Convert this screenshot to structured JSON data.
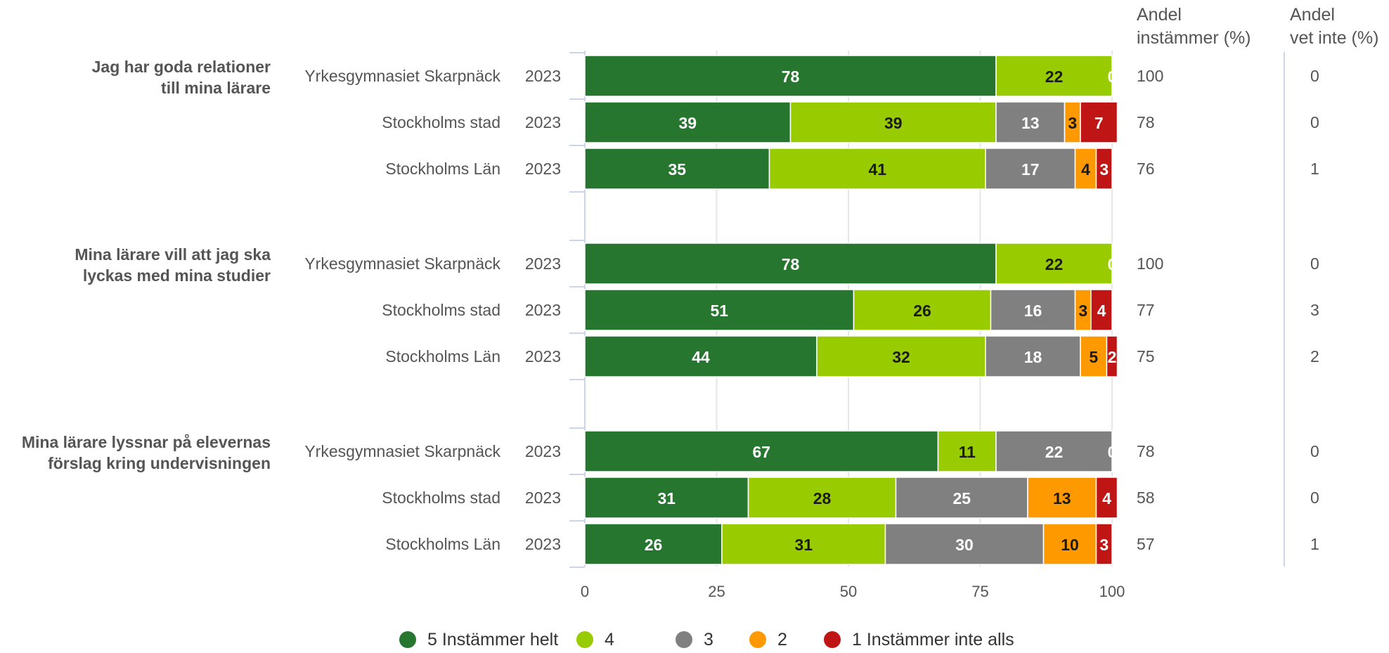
{
  "chart_data": {
    "type": "bar",
    "orientation": "horizontal",
    "stacked": true,
    "xlim": [
      0,
      100
    ],
    "x_ticks": [
      0,
      25,
      50,
      75,
      100
    ],
    "grid": true,
    "legend_position": "bottom",
    "series": [
      {
        "name": "5 Instämmer helt",
        "color": "#267630"
      },
      {
        "name": "4",
        "color": "#99CC00"
      },
      {
        "name": "3",
        "color": "#808080"
      },
      {
        "name": "2",
        "color": "#FF9900"
      },
      {
        "name": "1 Instämmer inte alls",
        "color": "#C01515"
      }
    ],
    "column_headers": {
      "andel_instammer": [
        "Andel",
        "instämmer (%)"
      ],
      "andel_vet_inte": [
        "Andel",
        "vet inte (%)"
      ]
    },
    "groups": [
      {
        "question": [
          "Jag har goda relationer",
          "till mina lärare"
        ],
        "rows": [
          {
            "label": "Yrkesgymnasiet Skarpnäck",
            "year": "2023",
            "values": [
              78,
              22,
              0,
              0,
              0
            ],
            "andel_instammer": "100",
            "andel_vet_inte": "0"
          },
          {
            "label": "Stockholms stad",
            "year": "2023",
            "values": [
              39,
              39,
              13,
              3,
              7
            ],
            "andel_instammer": "78",
            "andel_vet_inte": "0"
          },
          {
            "label": "Stockholms Län",
            "year": "2023",
            "values": [
              35,
              41,
              17,
              4,
              3
            ],
            "andel_instammer": "76",
            "andel_vet_inte": "1"
          }
        ]
      },
      {
        "question": [
          "Mina lärare vill att jag ska",
          "lyckas med mina studier"
        ],
        "rows": [
          {
            "label": "Yrkesgymnasiet Skarpnäck",
            "year": "2023",
            "values": [
              78,
              22,
              0,
              0,
              0
            ],
            "andel_instammer": "100",
            "andel_vet_inte": "0"
          },
          {
            "label": "Stockholms stad",
            "year": "2023",
            "values": [
              51,
              26,
              16,
              3,
              4
            ],
            "andel_instammer": "77",
            "andel_vet_inte": "3"
          },
          {
            "label": "Stockholms Län",
            "year": "2023",
            "values": [
              44,
              32,
              18,
              5,
              2
            ],
            "andel_instammer": "75",
            "andel_vet_inte": "2"
          }
        ]
      },
      {
        "question": [
          "Mina lärare lyssnar på elevernas",
          "förslag kring undervisningen"
        ],
        "rows": [
          {
            "label": "Yrkesgymnasiet Skarpnäck",
            "year": "2023",
            "values": [
              67,
              11,
              22,
              0,
              0
            ],
            "andel_instammer": "78",
            "andel_vet_inte": "0"
          },
          {
            "label": "Stockholms stad",
            "year": "2023",
            "values": [
              31,
              28,
              25,
              13,
              4
            ],
            "andel_instammer": "58",
            "andel_vet_inte": "0"
          },
          {
            "label": "Stockholms Län",
            "year": "2023",
            "values": [
              26,
              31,
              30,
              10,
              3
            ],
            "andel_instammer": "57",
            "andel_vet_inte": "1"
          }
        ]
      }
    ]
  }
}
